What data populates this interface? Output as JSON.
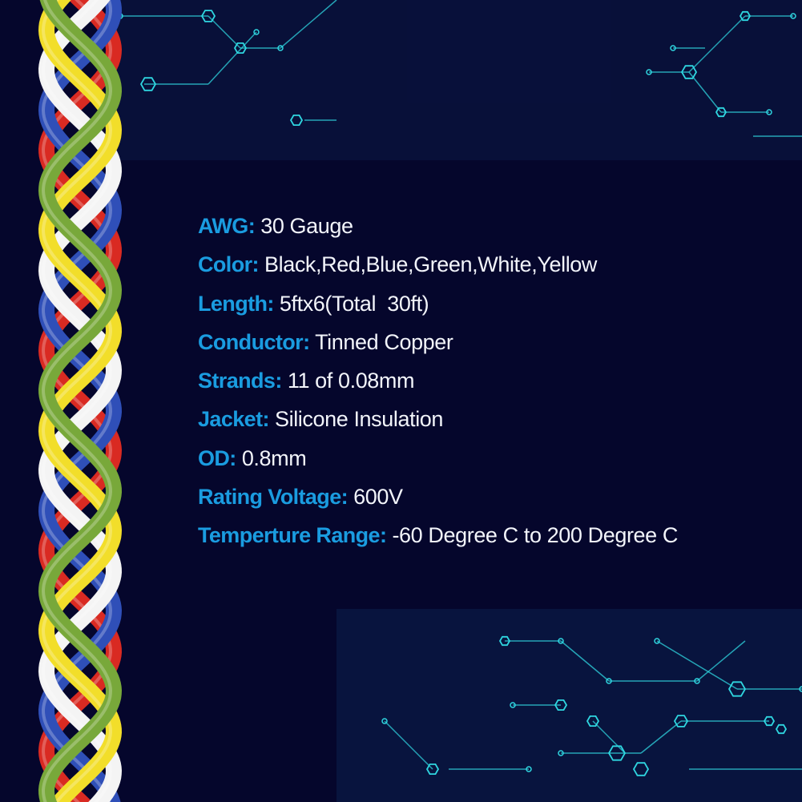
{
  "specs": [
    {
      "label": "AWG:",
      "value": "30 Gauge"
    },
    {
      "label": "Color:",
      "value": "Black,Red,Blue,Green,White,Yellow"
    },
    {
      "label": "Length:",
      "value": "5ftx6(Total  30ft)"
    },
    {
      "label": "Conductor:",
      "value": "Tinned Copper"
    },
    {
      "label": "Strands:",
      "value": "11 of 0.08mm"
    },
    {
      "label": "Jacket:",
      "value": "Silicone Insulation"
    },
    {
      "label": "OD:",
      "value": "0.8mm"
    },
    {
      "label": "Rating Voltage:",
      "value": "600V"
    },
    {
      "label": "Temperture Range:",
      "value": "-60 Degree C to 200 Degree C"
    }
  ],
  "colors": {
    "background": "#05062c",
    "label": "#1a9ce0",
    "value": "#f2f4fa",
    "circuit": "#2fd6e0",
    "wires": [
      "#d92a22",
      "#2f4fb8",
      "#f4f4f4",
      "#f2de2a",
      "#78a83a"
    ]
  }
}
